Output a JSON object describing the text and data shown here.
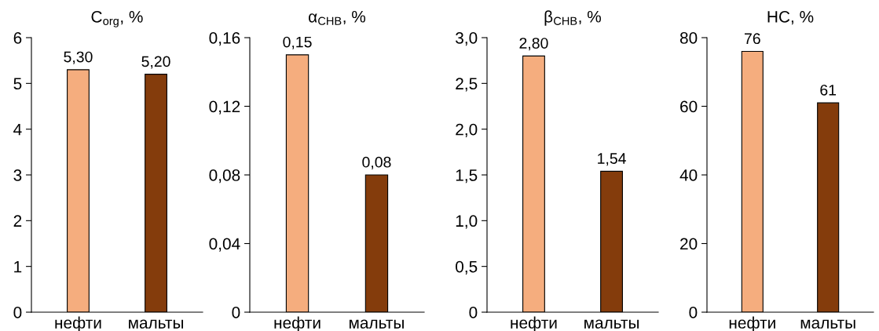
{
  "chart_data": [
    {
      "type": "bar",
      "title": "C$_{org}$, %",
      "categories": [
        "нефти",
        "мальты"
      ],
      "values": [
        5.3,
        5.2
      ],
      "colors": [
        "#f5ad7e",
        "#843c0c"
      ],
      "value_labels": [
        "5,30",
        "5,20"
      ],
      "ylim": [
        0,
        6
      ],
      "yticks": [
        0,
        1,
        2,
        3,
        4,
        5,
        6
      ],
      "grid": false
    },
    {
      "type": "bar",
      "title": "α$_{CHB}$, %",
      "categories": [
        "нефти",
        "мальты"
      ],
      "values": [
        0.15,
        0.08
      ],
      "colors": [
        "#f5ad7e",
        "#843c0c"
      ],
      "value_labels": [
        "0,15",
        "0,08"
      ],
      "ylim": [
        0,
        0.16
      ],
      "yticks": [
        0,
        {
          "value": 0.04,
          "label": "0,04"
        },
        {
          "value": 0.08,
          "label": "0,08"
        },
        {
          "value": 0.12,
          "label": "0,12"
        },
        {
          "value": 0.16,
          "label": "0,16"
        }
      ],
      "grid": false
    },
    {
      "type": "bar",
      "title": "β$_{CHB}$, %",
      "categories": [
        "нефти",
        "мальты"
      ],
      "values": [
        2.8,
        1.54
      ],
      "colors": [
        "#f5ad7e",
        "#843c0c"
      ],
      "value_labels": [
        "2,80",
        "1,54"
      ],
      "ylim": [
        0,
        3.0
      ],
      "yticks": [
        0,
        {
          "value": 0.5,
          "label": "0,5"
        },
        {
          "value": 1.0,
          "label": "1,0"
        },
        {
          "value": 1.5,
          "label": "1,5"
        },
        {
          "value": 2.0,
          "label": "2,0"
        },
        {
          "value": 2.5,
          "label": "2,5"
        },
        {
          "value": 3.0,
          "label": "3,0"
        }
      ],
      "grid": false
    },
    {
      "type": "bar",
      "title": "HC, %",
      "categories": [
        "нефти",
        "мальты"
      ],
      "values": [
        76,
        61
      ],
      "colors": [
        "#f5ad7e",
        "#843c0c"
      ],
      "value_labels": [
        "76",
        "61"
      ],
      "ylim": [
        0,
        80
      ],
      "yticks": [
        0,
        20,
        40,
        60,
        80
      ],
      "grid": false
    }
  ]
}
